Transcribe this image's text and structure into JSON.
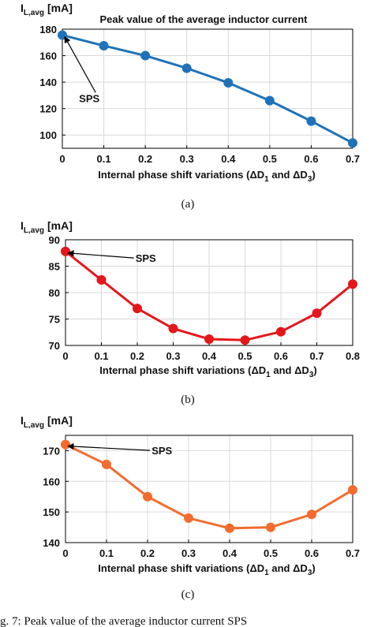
{
  "colors": {
    "a": "#1f72b8",
    "b": "#e3171b",
    "c": "#f26c2f",
    "grid": "#d9d9d9",
    "axis": "#000000"
  },
  "chart_data": [
    {
      "type": "line",
      "title": "Peak value of the average inductor current",
      "ylabel_main": "I",
      "ylabel_sub": "L,avg",
      "ylabel_unit": "[mA]",
      "xlabel": "Internal phase shift variations (ΔD₁ and ΔD₃)",
      "caption": "(a)",
      "grid": true,
      "xlim": [
        0,
        0.7
      ],
      "ylim": [
        90,
        180
      ],
      "xticks": [
        0,
        0.1,
        0.2,
        0.3,
        0.4,
        0.5,
        0.6,
        0.7
      ],
      "xtick_labels": [
        "0",
        "0.1",
        "0.2",
        "0.3",
        "0.4",
        "0.5",
        "0.6",
        "0.7"
      ],
      "yticks": [
        100,
        120,
        140,
        160,
        180
      ],
      "ytick_labels": [
        "100",
        "120",
        "140",
        "160",
        "180"
      ],
      "series": [
        {
          "x": [
            0,
            0.1,
            0.2,
            0.3,
            0.4,
            0.5,
            0.6,
            0.7
          ],
          "values": [
            175.5,
            167.5,
            160,
            150.5,
            139.5,
            126,
            110.5,
            94
          ]
        }
      ],
      "annotation": {
        "text": "SPS",
        "point": [
          0,
          175.5
        ],
        "text_at": [
          0.065,
          125
        ]
      }
    },
    {
      "type": "line",
      "title": "",
      "ylabel_main": "I",
      "ylabel_sub": "L,avg",
      "ylabel_unit": "[mA]",
      "xlabel": "Internal phase shift variations (ΔD₁ and ΔD₃)",
      "caption": "(b)",
      "grid": true,
      "xlim": [
        0,
        0.8
      ],
      "ylim": [
        70,
        90
      ],
      "xticks": [
        0,
        0.1,
        0.2,
        0.3,
        0.4,
        0.5,
        0.6,
        0.7,
        0.8
      ],
      "xtick_labels": [
        "0",
        "0.1",
        "0.2",
        "0.3",
        "0.4",
        "0.5",
        "0.6",
        "0.7",
        "0.8"
      ],
      "yticks": [
        70,
        75,
        80,
        85,
        90
      ],
      "ytick_labels": [
        "70",
        "75",
        "80",
        "85",
        "90"
      ],
      "series": [
        {
          "x": [
            0,
            0.1,
            0.2,
            0.3,
            0.4,
            0.5,
            0.6,
            0.7,
            0.8
          ],
          "values": [
            87.8,
            82.4,
            77.0,
            73.2,
            71.2,
            71.0,
            72.6,
            76.1,
            81.6
          ]
        }
      ],
      "annotation": {
        "text": "SPS",
        "point": [
          0,
          87.8
        ],
        "text_at": [
          0.195,
          85.8
        ]
      }
    },
    {
      "type": "line",
      "title": "",
      "ylabel_main": "I",
      "ylabel_sub": "L,avg",
      "ylabel_unit": "[mA]",
      "xlabel": "Internal phase shift variations (ΔD₁ and ΔD₃)",
      "caption": "(c)",
      "grid": true,
      "xlim": [
        0,
        0.7
      ],
      "ylim": [
        140,
        175
      ],
      "xticks": [
        0,
        0.1,
        0.2,
        0.3,
        0.4,
        0.5,
        0.6,
        0.7
      ],
      "xtick_labels": [
        "0",
        "0.1",
        "0.2",
        "0.3",
        "0.4",
        "0.5",
        "0.6",
        "0.7"
      ],
      "yticks": [
        140,
        150,
        160,
        170
      ],
      "ytick_labels": [
        "140",
        "150",
        "160",
        "170"
      ],
      "series": [
        {
          "x": [
            0,
            0.1,
            0.2,
            0.3,
            0.4,
            0.5,
            0.6,
            0.7
          ],
          "values": [
            172.0,
            165.5,
            155.0,
            148.0,
            144.7,
            145.0,
            149.2,
            157.2
          ]
        }
      ],
      "annotation": {
        "text": "SPS",
        "point": [
          0,
          172.0
        ],
        "text_at": [
          0.21,
          168.8
        ]
      }
    }
  ],
  "footer_caption": "g. 7: Peak value of the average inductor current SPS"
}
